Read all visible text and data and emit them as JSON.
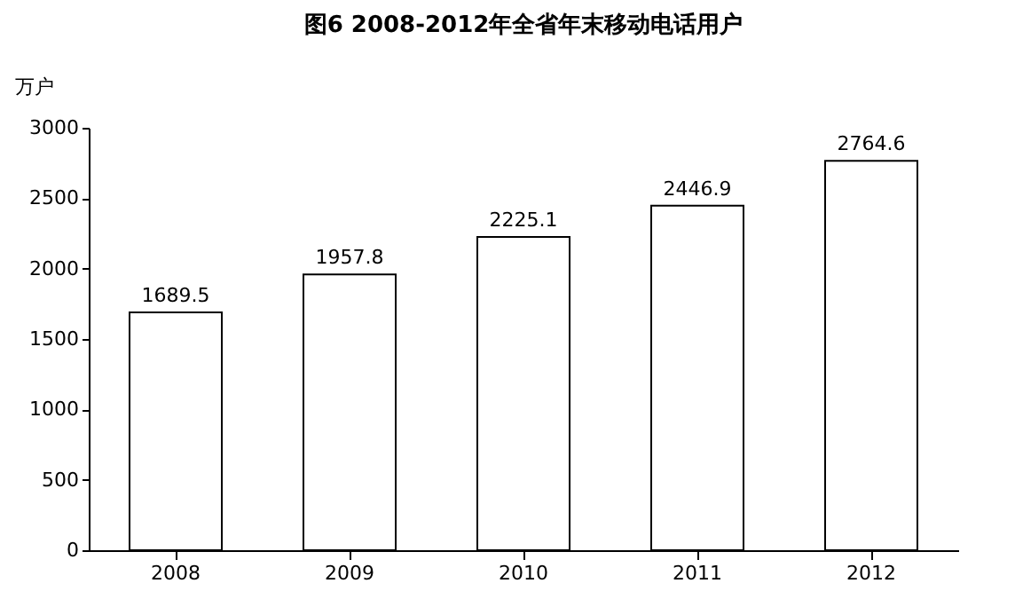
{
  "chart_data": {
    "type": "bar",
    "title": "图6 2008-2012年全省年末移动电话用户",
    "ylabel": "万户",
    "categories": [
      "2008",
      "2009",
      "2010",
      "2011",
      "2012"
    ],
    "values": [
      1689.5,
      1957.8,
      2225.1,
      2446.9,
      2764.6
    ],
    "color": "#ffffff",
    "ylim": [
      0,
      3000
    ],
    "yticks": [
      0,
      500,
      1000,
      1500,
      2000,
      2500,
      3000
    ],
    "grid": false,
    "data_labels": true
  }
}
